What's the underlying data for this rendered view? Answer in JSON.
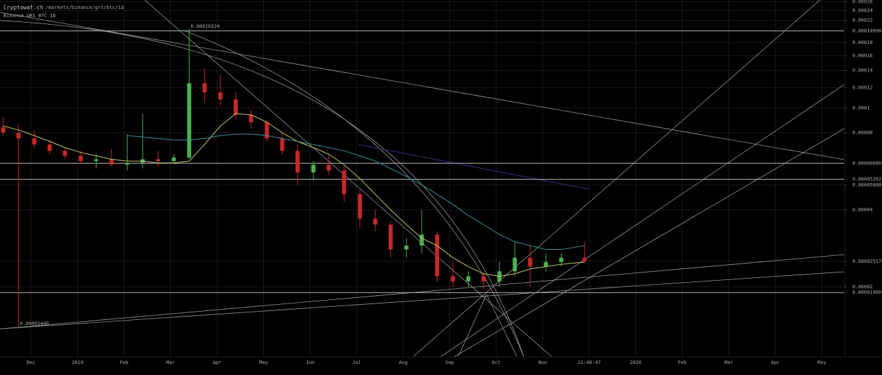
{
  "header": {
    "site": "Cryptowat.ch",
    "path": "/markets/binance/grs/btc/1d",
    "market": "Binance GRS BTC 1D"
  },
  "chart_data": {
    "type": "candlestick",
    "log_scale": true,
    "grid": true,
    "up_color": "#4caf50",
    "down_color": "#c62828",
    "xlim": [
      -0.667,
      17.48
    ],
    "ylim": [
      1.07e-05,
      0.000264
    ],
    "xticks": [
      {
        "value": 0,
        "label": "Dec"
      },
      {
        "value": 1,
        "label": "2019"
      },
      {
        "value": 2,
        "label": "Feb"
      },
      {
        "value": 3,
        "label": "Mar"
      },
      {
        "value": 4,
        "label": "Apr"
      },
      {
        "value": 5,
        "label": "May"
      },
      {
        "value": 6,
        "label": "Jun"
      },
      {
        "value": 7,
        "label": "Jul"
      },
      {
        "value": 8,
        "label": "Aug"
      },
      {
        "value": 9,
        "label": "Sep"
      },
      {
        "value": 10,
        "label": "Oct"
      },
      {
        "value": 11,
        "label": "Nov"
      },
      {
        "value": 12,
        "label": "11:48:47"
      },
      {
        "value": 13,
        "label": "2020"
      },
      {
        "value": 14,
        "label": "Feb"
      },
      {
        "value": 15,
        "label": "Mar"
      },
      {
        "value": 16,
        "label": "Apr"
      },
      {
        "value": 17,
        "label": "May"
      }
    ],
    "yticks": [
      0.00026,
      0.00024,
      0.00022,
      0.00018,
      0.00016,
      0.00014,
      0.00012,
      0.0001,
      8e-05,
      {
        "value": 5e-05,
        "label": "0.00005000"
      },
      4e-05,
      2.517e-05,
      2e-05
    ],
    "hlines": [
      0.00019998,
      {
        "value": 6.08e-05,
        "label": "0.00006080"
      },
      5.262e-05,
      {
        "value": 1.9e-05,
        "label": "0.00001900"
      }
    ],
    "annotations": [
      {
        "x": 3.4,
        "value": 0.00020324,
        "label": "0.00020324"
      },
      {
        "x": -0.27,
        "value": 1.4e-05,
        "label": "0.00001400"
      }
    ],
    "x": [
      -0.6,
      -0.27,
      0.07,
      0.4,
      0.73,
      1.07,
      1.4,
      1.73,
      2.07,
      2.4,
      2.73,
      3.07,
      3.4,
      3.73,
      4.07,
      4.4,
      4.73,
      5.07,
      5.4,
      5.73,
      6.07,
      6.4,
      6.73,
      7.07,
      7.4,
      7.73,
      8.07,
      8.4,
      8.73,
      9.07,
      9.4,
      9.73,
      10.07,
      10.4,
      10.73,
      11.07,
      11.4,
      11.9
    ],
    "open": [
      8.4e-05,
      8e-05,
      7.6e-05,
      7.2e-05,
      6.8e-05,
      6.5e-05,
      6.2e-05,
      6.3e-05,
      6e-05,
      6.1e-05,
      6.3e-05,
      6.2e-05,
      6.4e-05,
      0.000125,
      0.000115,
      0.000108,
      9.4e-05,
      8.8e-05,
      7.6e-05,
      6.8e-05,
      5.6e-05,
      6e-05,
      5.7e-05,
      4.6e-05,
      3.7e-05,
      3.5e-05,
      2.8e-05,
      2.9e-05,
      3.2e-05,
      2.2e-05,
      2.1e-05,
      2.2e-05,
      2.1e-05,
      2.3e-05,
      2.6e-05,
      2.4e-05,
      2.5e-05,
      2.6e-05
    ],
    "high": [
      9.2e-05,
      8.6e-05,
      8.2e-05,
      7.5e-05,
      7e-05,
      6.8e-05,
      6.6e-05,
      6.9e-05,
      7.9e-05,
      9.5e-05,
      6.8e-05,
      6.6e-05,
      0.00020324,
      0.000142,
      0.000135,
      0.000115,
      9.8e-05,
      9e-05,
      7.9e-05,
      7.2e-05,
      6.2e-05,
      6.6e-05,
      5.9e-05,
      4.8e-05,
      4e-05,
      3.6e-05,
      3.1e-05,
      4e-05,
      3.3e-05,
      2.5e-05,
      2.3e-05,
      2.3e-05,
      2.5e-05,
      3e-05,
      2.9e-05,
      2.7e-05,
      2.7e-05,
      3e-05
    ],
    "low": [
      7.8e-05,
      1.4e-05,
      7e-05,
      6.6e-05,
      6.3e-05,
      6e-05,
      5.8e-05,
      5.9e-05,
      5.7e-05,
      5.8e-05,
      5.9e-05,
      6e-05,
      6.3e-05,
      0.000105,
      0.000102,
      9e-05,
      8.3e-05,
      7.4e-05,
      6.6e-05,
      5e-05,
      5.2e-05,
      5.5e-05,
      4.3e-05,
      3.4e-05,
      3.3e-05,
      2.6e-05,
      2.6e-05,
      2.7e-05,
      2.1e-05,
      2e-05,
      2e-05,
      1.95e-05,
      2e-05,
      2.2e-05,
      2e-05,
      2.3e-05,
      2.4e-05,
      2.5e-05
    ],
    "close": [
      8e-05,
      7.6e-05,
      7.2e-05,
      6.8e-05,
      6.5e-05,
      6.2e-05,
      6.3e-05,
      6e-05,
      6.1e-05,
      6.3e-05,
      6.2e-05,
      6.4e-05,
      0.000125,
      0.000115,
      0.000108,
      9.4e-05,
      8.8e-05,
      7.6e-05,
      6.8e-05,
      5.6e-05,
      6e-05,
      5.7e-05,
      4.6e-05,
      3.7e-05,
      3.5e-05,
      2.8e-05,
      2.9e-05,
      3.2e-05,
      2.2e-05,
      2.1e-05,
      2.2e-05,
      2.1e-05,
      2.3e-05,
      2.6e-05,
      2.4e-05,
      2.5e-05,
      2.6e-05,
      2.517e-05
    ],
    "overlays": [
      {
        "color": "#c8c86a",
        "values": [
          8.5e-05,
          8.2e-05,
          7.8e-05,
          7.4e-05,
          7e-05,
          6.7e-05,
          6.5e-05,
          6.3e-05,
          6.2e-05,
          6.2e-05,
          6.1e-05,
          6.1e-05,
          6.2e-05,
          7.2e-05,
          8.5e-05,
          9.5e-05,
          9.4e-05,
          8.8e-05,
          8e-05,
          7.4e-05,
          7e-05,
          6.6e-05,
          6e-05,
          5.3e-05,
          4.6e-05,
          4e-05,
          3.5e-05,
          3.1e-05,
          2.9e-05,
          2.6e-05,
          2.4e-05,
          2.25e-05,
          2.2e-05,
          2.25e-05,
          2.35e-05,
          2.4e-05,
          2.45e-05,
          2.5e-05
        ]
      },
      {
        "color": "#3f8f9a",
        "values": [
          null,
          null,
          null,
          null,
          null,
          null,
          null,
          null,
          7.8e-05,
          7.7e-05,
          7.6e-05,
          7.5e-05,
          7.5e-05,
          7.6e-05,
          7.8e-05,
          7.9e-05,
          7.9e-05,
          7.8e-05,
          7.6e-05,
          7.4e-05,
          7.2e-05,
          7e-05,
          6.8e-05,
          6.5e-05,
          6.2e-05,
          5.8e-05,
          5.4e-05,
          5e-05,
          4.6e-05,
          4.2e-05,
          3.8e-05,
          3.5e-05,
          3.2e-05,
          3e-05,
          2.9e-05,
          2.8e-05,
          2.8e-05,
          2.9e-05
        ]
      }
    ]
  }
}
